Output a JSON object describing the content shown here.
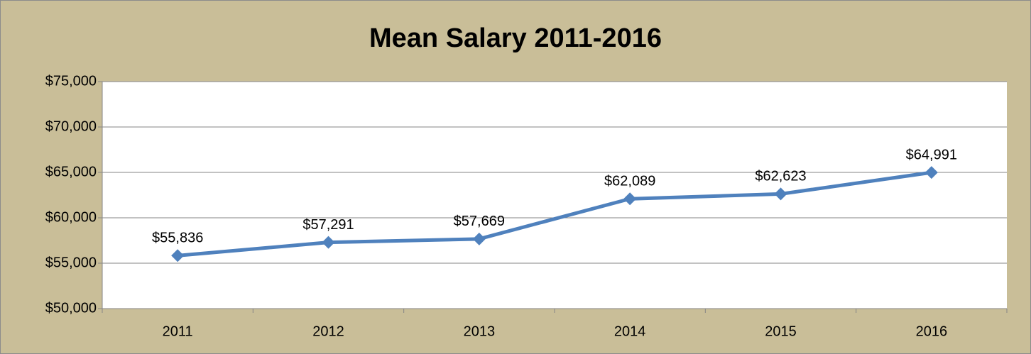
{
  "chart_data": {
    "type": "line",
    "title": "Mean Salary 2011-2016",
    "categories": [
      "2011",
      "2012",
      "2013",
      "2014",
      "2015",
      "2016"
    ],
    "values": [
      55836,
      57291,
      57669,
      62089,
      62623,
      64991
    ],
    "value_labels": [
      "$55,836",
      "$57,291",
      "$57,669",
      "$62,089",
      "$62,623",
      "$64,991"
    ],
    "color": "#4f81bd",
    "ylim": [
      50000,
      75000
    ],
    "yticks": [
      {
        "value": 50000,
        "label": "$50,000"
      },
      {
        "value": 55000,
        "label": "$55,000"
      },
      {
        "value": 60000,
        "label": "$60,000"
      },
      {
        "value": 65000,
        "label": "$65,000"
      },
      {
        "value": 70000,
        "label": "$70,000"
      },
      {
        "value": 75000,
        "label": "$75,000"
      }
    ],
    "grid": true
  }
}
